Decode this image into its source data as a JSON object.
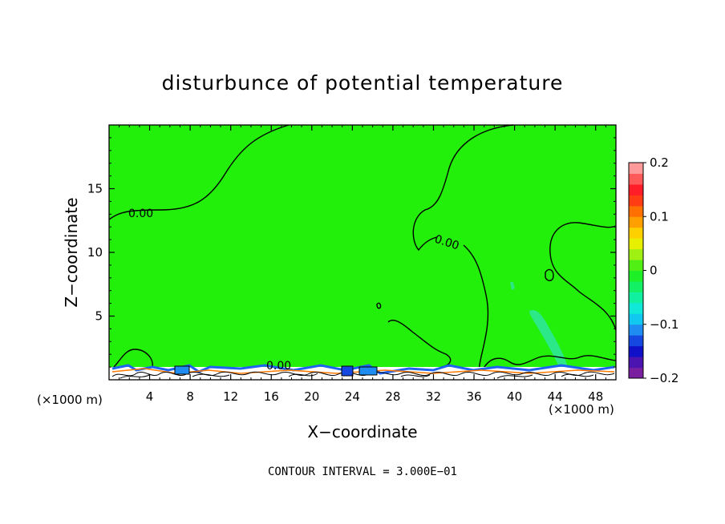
{
  "chart_data": {
    "type": "contour",
    "title": "disturbunce of potential temperature",
    "xlabel": "X−coordinate",
    "ylabel": "Z−coordinate",
    "x_unit_left": "(×1000 m)",
    "x_unit_right": "(×1000 m)",
    "xlim": [
      0,
      50
    ],
    "ylim": [
      0,
      20
    ],
    "x_ticks": [
      4,
      8,
      12,
      16,
      20,
      24,
      28,
      32,
      36,
      40,
      44,
      48
    ],
    "y_ticks": [
      5,
      10,
      15
    ],
    "contour_labels": [
      "0.00",
      "0.00",
      "0.00"
    ],
    "footer": "CONTOUR INTERVAL = 3.000E−01",
    "colorbar": {
      "min": -0.2,
      "max": 0.2,
      "tick_values": [
        0.2,
        0.1,
        0,
        -0.1,
        -0.2
      ],
      "tick_labels": [
        "0.2",
        "0.1",
        "0",
        "−0.1",
        "−0.2"
      ],
      "colors": [
        "#7a1fa0",
        "#4b14b0",
        "#1010c8",
        "#1448e0",
        "#1e8cf0",
        "#10c8f0",
        "#10e8d8",
        "#10f0a0",
        "#14f064",
        "#1ef028",
        "#50f014",
        "#a0f014",
        "#e6f000",
        "#ffd000",
        "#ffa000",
        "#ff7000",
        "#ff3c14",
        "#ff1e28",
        "#ff5a5a",
        "#ff9a9a"
      ]
    },
    "background_color": "#22f00a",
    "grid": false
  }
}
